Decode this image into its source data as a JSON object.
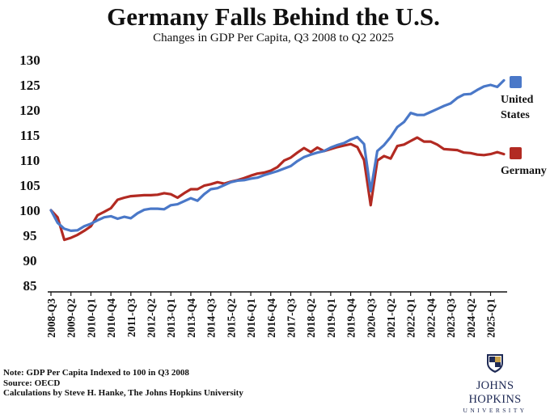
{
  "chart_data": {
    "type": "line",
    "title": "Germany Falls Behind the U.S.",
    "subtitle": "Changes in GDP Per Capita, Q3 2008 to Q2 2025",
    "xlabel": "",
    "ylabel": "",
    "ylim": [
      85,
      130
    ],
    "yticks": [
      "85",
      "90",
      "95",
      "100",
      "105",
      "110",
      "115",
      "120",
      "125",
      "130"
    ],
    "xticks": [
      "2008-Q3",
      "2009-Q2",
      "2010-Q1",
      "2010-Q4",
      "2011-Q3",
      "2012-Q2",
      "2013-Q1",
      "2013-Q4",
      "2014-Q3",
      "2015-Q2",
      "2016-Q1",
      "2016-Q4",
      "2017-Q3",
      "2018-Q2",
      "2019-Q1",
      "2019-Q4",
      "2020-Q3",
      "2021-Q2",
      "2022-Q1",
      "2022-Q4",
      "2023-Q3",
      "2024-Q2",
      "2025-Q1"
    ],
    "grid": false,
    "legend_position": "right",
    "colors": {
      "us": "#4a78c8",
      "germany": "#b22a22"
    },
    "series": [
      {
        "name": "United States",
        "key": "us",
        "values": [
          100.0,
          97.5,
          96.3,
          95.9,
          96.0,
          96.8,
          97.3,
          98.0,
          98.6,
          98.8,
          98.3,
          98.7,
          98.4,
          99.4,
          100.1,
          100.3,
          100.3,
          100.2,
          101.0,
          101.2,
          101.8,
          102.4,
          101.9,
          103.2,
          104.2,
          104.4,
          105.0,
          105.6,
          105.9,
          106.0,
          106.3,
          106.5,
          107.0,
          107.4,
          107.8,
          108.3,
          108.8,
          109.8,
          110.6,
          111.1,
          111.5,
          111.8,
          112.5,
          113.0,
          113.4,
          114.1,
          114.6,
          113.2,
          103.8,
          111.8,
          113.0,
          114.6,
          116.6,
          117.6,
          119.4,
          119.0,
          119.0,
          119.6,
          120.2,
          120.8,
          121.3,
          122.4,
          123.1,
          123.2,
          124.0,
          124.7,
          125.0,
          124.6,
          125.9
        ]
      },
      {
        "name": "Germany",
        "key": "germany",
        "values": [
          100.0,
          98.6,
          94.1,
          94.5,
          95.1,
          95.9,
          96.8,
          99.0,
          99.7,
          100.4,
          102.1,
          102.5,
          102.8,
          102.9,
          103.0,
          103.0,
          103.1,
          103.4,
          103.2,
          102.5,
          103.4,
          104.2,
          104.2,
          104.9,
          105.2,
          105.6,
          105.3,
          105.7,
          106.0,
          106.4,
          106.9,
          107.3,
          107.5,
          107.9,
          108.6,
          109.9,
          110.5,
          111.5,
          112.4,
          111.6,
          112.5,
          111.8,
          112.2,
          112.6,
          112.9,
          113.2,
          112.6,
          110.0,
          101.0,
          109.9,
          110.8,
          110.3,
          112.8,
          113.1,
          113.8,
          114.5,
          113.7,
          113.7,
          113.1,
          112.2,
          112.1,
          112.0,
          111.5,
          111.4,
          111.1,
          111.0,
          111.2,
          111.6,
          111.2
        ]
      }
    ]
  },
  "legend": {
    "us_label_line1": "United",
    "us_label_line2": "States",
    "germany_label": "Germany"
  },
  "notes": {
    "line1": "Note: GDP Per Capita Indexed to 100 in Q3 2008",
    "line2": "Source: OECD",
    "line3": "Calculations by Steve H. Hanke, The Johns Hopkins University"
  },
  "logo": {
    "name": "JOHNS HOPKINS",
    "sub": "UNIVERSITY"
  }
}
